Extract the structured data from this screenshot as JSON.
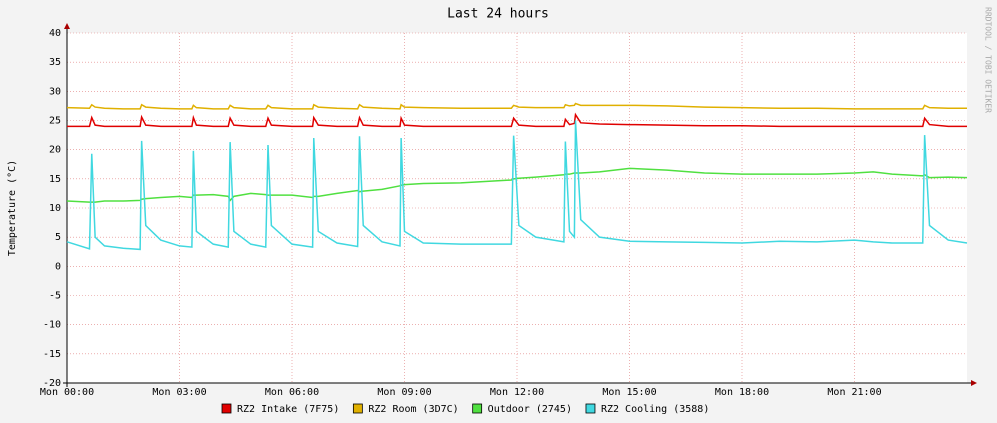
{
  "chart_data": {
    "type": "line",
    "title": "Last 24 hours",
    "y_label": "Temperature (°C)",
    "side_text": "RRDTOOL / TOBI OETIKER",
    "x": [
      0,
      0.6,
      0.66,
      0.75,
      1.0,
      1.5,
      1.95,
      1.99,
      2.1,
      2.5,
      3.0,
      3.33,
      3.37,
      3.45,
      3.9,
      4.3,
      4.35,
      4.45,
      4.9,
      5.3,
      5.36,
      5.45,
      6.0,
      6.55,
      6.58,
      6.7,
      7.2,
      7.75,
      7.8,
      7.9,
      8.4,
      8.88,
      8.91,
      9.0,
      9.5,
      10.5,
      11.85,
      11.91,
      12.05,
      12.5,
      13.25,
      13.29,
      13.4,
      13.53,
      13.56,
      13.7,
      14.2,
      15,
      16,
      17,
      18,
      19,
      20,
      21,
      21.5,
      22,
      22.82,
      22.87,
      23.0,
      23.5,
      24
    ],
    "series": [
      {
        "name": "RZ2 Intake (7F75)",
        "color": "#e00000",
        "values": [
          24,
          24,
          25.5,
          24.2,
          24,
          24,
          24,
          25.6,
          24.2,
          24,
          24,
          24,
          25.5,
          24.2,
          24,
          24,
          25.4,
          24.2,
          24,
          24,
          25.4,
          24.2,
          24,
          24,
          25.5,
          24.2,
          24,
          24,
          25.5,
          24.2,
          24,
          24,
          25.4,
          24.2,
          24,
          24,
          24,
          25.4,
          24.2,
          24,
          24,
          25.2,
          24.3,
          24.5,
          26,
          24.6,
          24.4,
          24.3,
          24.2,
          24.1,
          24.1,
          24,
          24,
          24,
          24,
          24,
          24,
          25.4,
          24.3,
          24,
          24
        ]
      },
      {
        "name": "RZ2 Room (3D7C)",
        "color": "#e0b000",
        "values": [
          27.2,
          27.1,
          27.7,
          27.3,
          27.1,
          27,
          27,
          27.7,
          27.3,
          27.1,
          27,
          27,
          27.6,
          27.2,
          27,
          27,
          27.6,
          27.2,
          27,
          27,
          27.6,
          27.2,
          27,
          27,
          27.7,
          27.3,
          27.1,
          27,
          27.7,
          27.3,
          27.1,
          27,
          27.7,
          27.3,
          27.2,
          27.1,
          27.1,
          27.6,
          27.3,
          27.2,
          27.2,
          27.7,
          27.5,
          27.6,
          27.9,
          27.6,
          27.6,
          27.6,
          27.5,
          27.3,
          27.2,
          27.1,
          27.1,
          27,
          27,
          27,
          27,
          27.6,
          27.2,
          27.1,
          27.1
        ]
      },
      {
        "name": "Outdoor (2745)",
        "color": "#50e040",
        "values": [
          11.2,
          11,
          11,
          11,
          11.2,
          11.2,
          11.3,
          11.5,
          11.6,
          11.8,
          12,
          11.8,
          12.2,
          12.2,
          12.3,
          12,
          11.3,
          12,
          12.5,
          12.3,
          12.2,
          12.2,
          12.2,
          11.8,
          12,
          12,
          12.5,
          13,
          12.8,
          12.9,
          13.2,
          13.8,
          13.9,
          14,
          14.2,
          14.3,
          14.8,
          15,
          15.1,
          15.3,
          15.7,
          15.8,
          15.8,
          16,
          16,
          16,
          16.2,
          16.8,
          16.5,
          16,
          15.8,
          15.8,
          15.8,
          16,
          16.2,
          15.8,
          15.5,
          15.7,
          15.2,
          15.3,
          15.2
        ]
      },
      {
        "name": "RZ2 Cooling (3588)",
        "color": "#40d8e0",
        "values": [
          4.2,
          3.0,
          19.3,
          5,
          3.5,
          3.1,
          2.9,
          21.5,
          7,
          4.5,
          3.5,
          3.3,
          19.8,
          6,
          3.8,
          3.3,
          21.3,
          6,
          3.8,
          3.3,
          20.8,
          7,
          3.8,
          3.3,
          22,
          6,
          4,
          3.4,
          22.3,
          7,
          4.2,
          3.5,
          22,
          6,
          4.0,
          3.8,
          3.8,
          22.4,
          7,
          5,
          4.2,
          21.4,
          6,
          5,
          25.0,
          8,
          5,
          4.3,
          4.2,
          4.1,
          4.0,
          4.3,
          4.2,
          4.5,
          4.2,
          4.0,
          4.0,
          22.5,
          7,
          4.5,
          4.0
        ]
      }
    ],
    "xlim": [
      0,
      24
    ],
    "xticks": [
      {
        "value": 0,
        "label": "Mon 00:00"
      },
      {
        "value": 3,
        "label": "Mon 03:00"
      },
      {
        "value": 6,
        "label": "Mon 06:00"
      },
      {
        "value": 9,
        "label": "Mon 09:00"
      },
      {
        "value": 12,
        "label": "Mon 12:00"
      },
      {
        "value": 15,
        "label": "Mon 15:00"
      },
      {
        "value": 18,
        "label": "Mon 18:00"
      },
      {
        "value": 21,
        "label": "Mon 21:00"
      }
    ],
    "ylim": [
      -20,
      40
    ],
    "yticks": [
      -20,
      -15,
      -10,
      -5,
      0,
      5,
      10,
      15,
      20,
      25,
      30,
      35,
      40
    ],
    "grid": true
  }
}
